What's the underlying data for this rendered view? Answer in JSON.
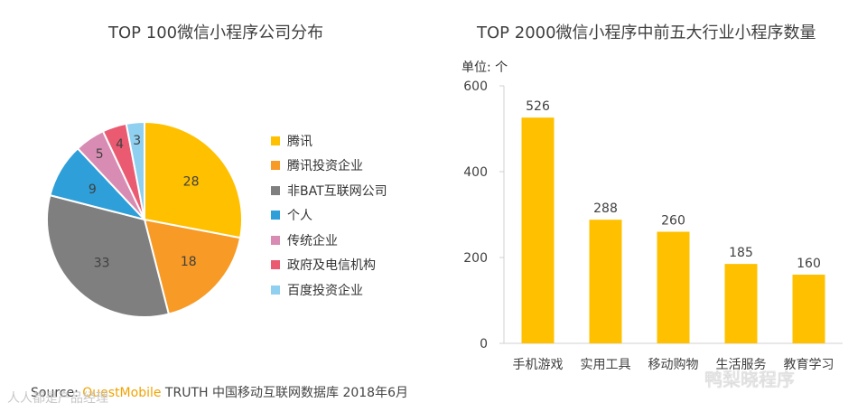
{
  "pie_title": "TOP 100微信小程序公司分布",
  "bar_title": "TOP 2000微信小程序中前五大行业小程序数量",
  "bar_unit_label": "单位: 个",
  "source": {
    "prefix": "Source: ",
    "brand": "QuestMobile",
    "rest": " TRUTH 中国移动互联网数据库 2018年6月"
  },
  "watermark_left": "人人都是产品经理",
  "watermark_right": "鸭梨晓程序",
  "chart_data": [
    {
      "type": "pie",
      "title": "TOP 100微信小程序公司分布",
      "labels": [
        "腾讯",
        "腾讯投资企业",
        "非BAT互联网公司",
        "个人",
        "传统企业",
        "政府及电信机构",
        "百度投资企业"
      ],
      "values": [
        28,
        18,
        33,
        9,
        5,
        4,
        3
      ],
      "colors": [
        "#ffc000",
        "#f79a26",
        "#7f7f7f",
        "#2e9fd8",
        "#d98cb3",
        "#ea5b72",
        "#8fd0f0"
      ],
      "legend_position": "right"
    },
    {
      "type": "bar",
      "title": "TOP 2000微信小程序中前五大行业小程序数量",
      "categories": [
        "手机游戏",
        "实用工具",
        "移动购物",
        "生活服务",
        "教育学习"
      ],
      "values": [
        526,
        288,
        260,
        185,
        160
      ],
      "ylabel": "单位: 个",
      "ylim": [
        0,
        600
      ],
      "yticks": [
        0,
        200,
        400,
        600
      ],
      "color": "#ffc000",
      "grid": false
    }
  ]
}
